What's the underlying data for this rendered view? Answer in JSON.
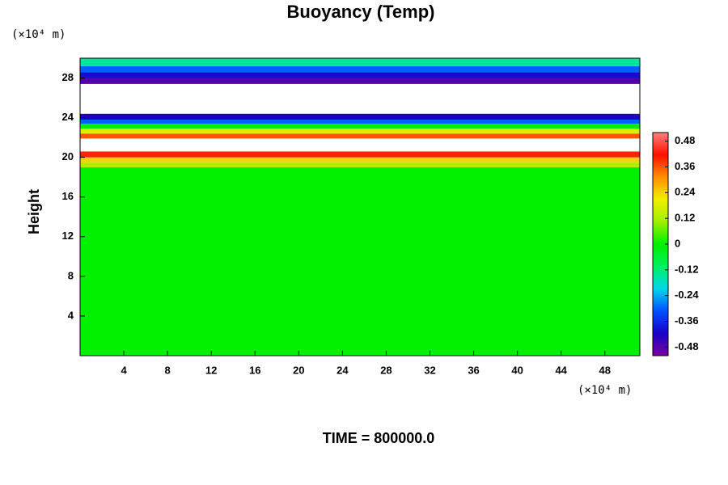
{
  "chart_data": {
    "type": "profile-heatmap",
    "title": "Buoyancy (Temp)",
    "y_label": "Height",
    "y_unit": "(×10⁴ m)",
    "x_unit": "(×10⁴ m)",
    "footer": "TIME = 800000.0",
    "xlim": [
      0,
      51.2
    ],
    "xticks": [
      4,
      8,
      12,
      16,
      20,
      24,
      28,
      32,
      36,
      40,
      44,
      48
    ],
    "ylim": [
      0,
      30
    ],
    "yticks": [
      4,
      8,
      12,
      16,
      20,
      24,
      28
    ],
    "y_edges": [
      0,
      19,
      19.5,
      20,
      20.6,
      21.9,
      22.4,
      22.9,
      23.4,
      23.8,
      24.4,
      27.4,
      28,
      28.6,
      29.2,
      30
    ],
    "values": [
      0.0,
      0.12,
      0.24,
      0.4,
      null,
      0.36,
      0.18,
      0.0,
      -0.3,
      -0.42,
      null,
      -0.48,
      -0.4,
      -0.3,
      -0.15
    ],
    "colorbar": {
      "lim": [
        -0.52,
        0.52
      ],
      "ticks": [
        -0.48,
        -0.36,
        -0.24,
        -0.12,
        0,
        0.12,
        0.24,
        0.36,
        0.48
      ],
      "colors": [
        "#7a00a0",
        "#1a00c8",
        "#0050ff",
        "#00d8e8",
        "#00f060",
        "#00f000",
        "#a0f000",
        "#f0f000",
        "#ff9000",
        "#ff1000",
        "#ff8080"
      ]
    }
  }
}
